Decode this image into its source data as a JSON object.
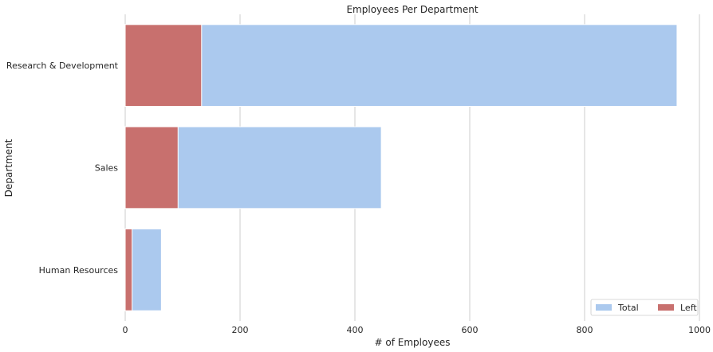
{
  "chart_data": {
    "type": "bar",
    "orientation": "horizontal",
    "title": "Employees Per Department",
    "xlabel": "# of Employees",
    "ylabel": "Department",
    "categories": [
      "Research & Development",
      "Sales",
      "Human Resources"
    ],
    "series": [
      {
        "name": "Total",
        "values": [
          961,
          446,
          63
        ],
        "color": "#abc9ee"
      },
      {
        "name": "Left",
        "values": [
          133,
          92,
          12
        ],
        "color": "#c8706e"
      }
    ],
    "xlim": [
      0,
      1000
    ],
    "xticks": [
      0,
      200,
      400,
      600,
      800,
      1000
    ],
    "grid": "x",
    "legend": {
      "placement": "lower-right",
      "orientation": "horizontal"
    }
  }
}
